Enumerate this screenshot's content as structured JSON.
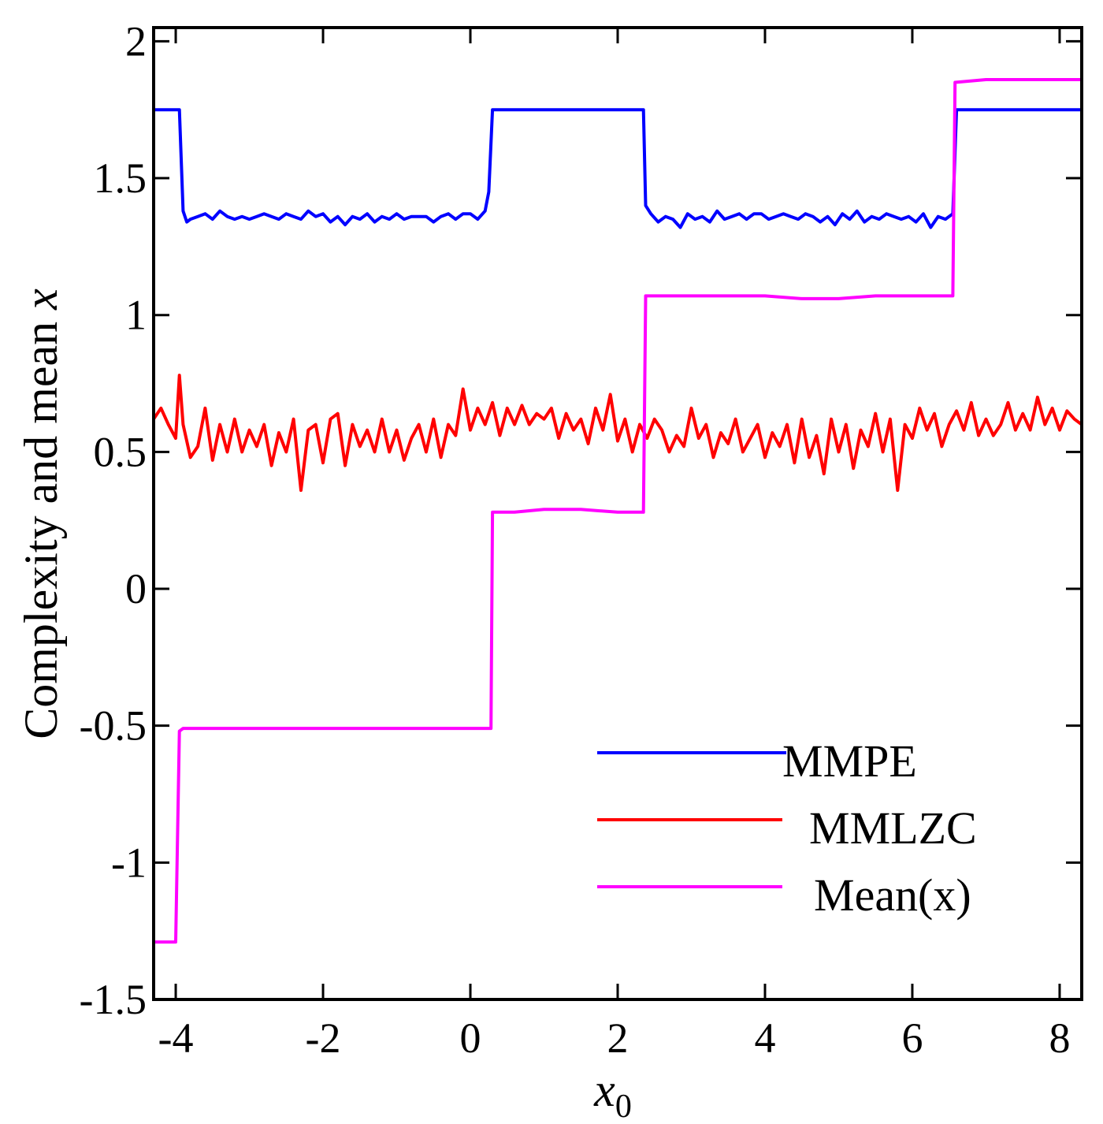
{
  "chart_data": {
    "type": "line",
    "title": "",
    "xlabel": "x",
    "xlabel_sub": "0",
    "ylabel": "Complexity and mean ",
    "ylabel_var": "x",
    "xlim": [
      -4.3,
      8.3
    ],
    "ylim": [
      -1.5,
      2.05
    ],
    "xticks": [
      -4,
      -2,
      0,
      2,
      4,
      6,
      8
    ],
    "xtick_labels": [
      "-4",
      "-2",
      "0",
      "2",
      "4",
      "6",
      "8"
    ],
    "yticks": [
      -1.5,
      -1,
      -0.5,
      0,
      0.5,
      1,
      1.5,
      2
    ],
    "ytick_labels": [
      "-1.5",
      "-1",
      "-0.5",
      "0",
      "0.5",
      "1",
      "1.5",
      "2"
    ],
    "grid": false,
    "legend_position": "bottom-right",
    "series": [
      {
        "name": "MMPE",
        "color": "#0000ff",
        "x": [
          -4.3,
          -3.95,
          -3.9,
          -3.85,
          -3.8,
          -3.7,
          -3.6,
          -3.5,
          -3.4,
          -3.3,
          -3.2,
          -3.1,
          -3.0,
          -2.9,
          -2.8,
          -2.7,
          -2.6,
          -2.5,
          -2.4,
          -2.3,
          -2.2,
          -2.1,
          -2.0,
          -1.9,
          -1.8,
          -1.7,
          -1.6,
          -1.5,
          -1.4,
          -1.3,
          -1.2,
          -1.1,
          -1.0,
          -0.9,
          -0.8,
          -0.7,
          -0.6,
          -0.5,
          -0.4,
          -0.3,
          -0.2,
          -0.1,
          0.0,
          0.1,
          0.2,
          0.25,
          0.3,
          2.35,
          2.38,
          2.45,
          2.55,
          2.65,
          2.75,
          2.85,
          2.95,
          3.05,
          3.15,
          3.25,
          3.35,
          3.45,
          3.55,
          3.65,
          3.75,
          3.85,
          3.95,
          4.05,
          4.15,
          4.25,
          4.35,
          4.45,
          4.55,
          4.65,
          4.75,
          4.85,
          4.95,
          5.05,
          5.15,
          5.25,
          5.35,
          5.45,
          5.55,
          5.65,
          5.75,
          5.85,
          5.95,
          6.05,
          6.15,
          6.25,
          6.35,
          6.45,
          6.55,
          6.6,
          8.3
        ],
        "values": [
          1.75,
          1.75,
          1.38,
          1.34,
          1.35,
          1.36,
          1.37,
          1.35,
          1.38,
          1.36,
          1.35,
          1.36,
          1.35,
          1.36,
          1.37,
          1.36,
          1.35,
          1.37,
          1.36,
          1.35,
          1.38,
          1.36,
          1.37,
          1.34,
          1.36,
          1.33,
          1.36,
          1.35,
          1.37,
          1.34,
          1.36,
          1.35,
          1.37,
          1.35,
          1.36,
          1.36,
          1.36,
          1.34,
          1.36,
          1.37,
          1.35,
          1.37,
          1.37,
          1.35,
          1.38,
          1.45,
          1.75,
          1.75,
          1.4,
          1.37,
          1.34,
          1.36,
          1.35,
          1.32,
          1.37,
          1.35,
          1.36,
          1.34,
          1.38,
          1.35,
          1.36,
          1.37,
          1.35,
          1.37,
          1.37,
          1.35,
          1.36,
          1.37,
          1.36,
          1.35,
          1.37,
          1.36,
          1.34,
          1.36,
          1.33,
          1.37,
          1.35,
          1.38,
          1.34,
          1.36,
          1.35,
          1.37,
          1.36,
          1.35,
          1.36,
          1.34,
          1.37,
          1.32,
          1.36,
          1.35,
          1.37,
          1.75,
          1.75
        ]
      },
      {
        "name": "MMLZC",
        "color": "#ff0000",
        "x": [
          -4.3,
          -4.2,
          -4.1,
          -4.0,
          -3.95,
          -3.9,
          -3.8,
          -3.7,
          -3.6,
          -3.5,
          -3.4,
          -3.3,
          -3.2,
          -3.1,
          -3.0,
          -2.9,
          -2.8,
          -2.7,
          -2.6,
          -2.5,
          -2.4,
          -2.3,
          -2.2,
          -2.1,
          -2.0,
          -1.9,
          -1.8,
          -1.7,
          -1.6,
          -1.5,
          -1.4,
          -1.3,
          -1.2,
          -1.1,
          -1.0,
          -0.9,
          -0.8,
          -0.7,
          -0.6,
          -0.5,
          -0.4,
          -0.3,
          -0.2,
          -0.1,
          0.0,
          0.1,
          0.2,
          0.3,
          0.4,
          0.5,
          0.6,
          0.7,
          0.8,
          0.9,
          1.0,
          1.1,
          1.2,
          1.3,
          1.4,
          1.5,
          1.6,
          1.7,
          1.8,
          1.9,
          2.0,
          2.1,
          2.2,
          2.3,
          2.4,
          2.5,
          2.6,
          2.7,
          2.8,
          2.9,
          3.0,
          3.1,
          3.2,
          3.3,
          3.4,
          3.5,
          3.6,
          3.7,
          3.8,
          3.9,
          4.0,
          4.1,
          4.2,
          4.3,
          4.4,
          4.5,
          4.6,
          4.7,
          4.8,
          4.9,
          5.0,
          5.1,
          5.2,
          5.3,
          5.4,
          5.5,
          5.6,
          5.7,
          5.8,
          5.9,
          6.0,
          6.1,
          6.2,
          6.3,
          6.4,
          6.5,
          6.6,
          6.7,
          6.8,
          6.9,
          7.0,
          7.1,
          7.2,
          7.3,
          7.4,
          7.5,
          7.6,
          7.7,
          7.8,
          7.9,
          8.0,
          8.1,
          8.2,
          8.3
        ],
        "values": [
          0.62,
          0.66,
          0.6,
          0.55,
          0.78,
          0.6,
          0.48,
          0.52,
          0.66,
          0.47,
          0.6,
          0.5,
          0.62,
          0.5,
          0.58,
          0.52,
          0.6,
          0.45,
          0.57,
          0.5,
          0.62,
          0.36,
          0.58,
          0.6,
          0.46,
          0.62,
          0.64,
          0.45,
          0.6,
          0.52,
          0.58,
          0.5,
          0.62,
          0.5,
          0.58,
          0.47,
          0.55,
          0.6,
          0.5,
          0.62,
          0.48,
          0.6,
          0.56,
          0.73,
          0.58,
          0.66,
          0.6,
          0.68,
          0.56,
          0.66,
          0.6,
          0.67,
          0.6,
          0.64,
          0.62,
          0.66,
          0.55,
          0.64,
          0.58,
          0.62,
          0.53,
          0.66,
          0.58,
          0.71,
          0.54,
          0.62,
          0.5,
          0.6,
          0.55,
          0.62,
          0.58,
          0.5,
          0.56,
          0.52,
          0.66,
          0.55,
          0.6,
          0.48,
          0.57,
          0.53,
          0.62,
          0.5,
          0.55,
          0.6,
          0.48,
          0.57,
          0.52,
          0.6,
          0.46,
          0.62,
          0.48,
          0.56,
          0.42,
          0.62,
          0.5,
          0.6,
          0.44,
          0.58,
          0.52,
          0.64,
          0.5,
          0.62,
          0.36,
          0.6,
          0.55,
          0.66,
          0.58,
          0.64,
          0.52,
          0.6,
          0.65,
          0.58,
          0.68,
          0.56,
          0.62,
          0.56,
          0.6,
          0.68,
          0.58,
          0.64,
          0.58,
          0.7,
          0.6,
          0.66,
          0.58,
          0.65,
          0.62,
          0.6
        ]
      },
      {
        "name": "Mean(x)",
        "color": "#ff00ff",
        "x": [
          -4.3,
          -4.0,
          -3.95,
          -3.9,
          -3.5,
          -3.0,
          -2.5,
          -2.0,
          -1.5,
          -1.0,
          -0.5,
          0.0,
          0.28,
          0.3,
          0.6,
          1.0,
          1.5,
          2.0,
          2.35,
          2.38,
          3.0,
          3.5,
          4.0,
          4.5,
          5.0,
          5.5,
          6.0,
          6.55,
          6.58,
          7.0,
          7.5,
          8.0,
          8.3
        ],
        "values": [
          -1.29,
          -1.29,
          -0.52,
          -0.51,
          -0.51,
          -0.51,
          -0.51,
          -0.51,
          -0.51,
          -0.51,
          -0.51,
          -0.51,
          -0.51,
          0.28,
          0.28,
          0.29,
          0.29,
          0.28,
          0.28,
          1.07,
          1.07,
          1.07,
          1.07,
          1.06,
          1.06,
          1.07,
          1.07,
          1.07,
          1.85,
          1.86,
          1.86,
          1.86,
          1.86
        ]
      }
    ]
  }
}
